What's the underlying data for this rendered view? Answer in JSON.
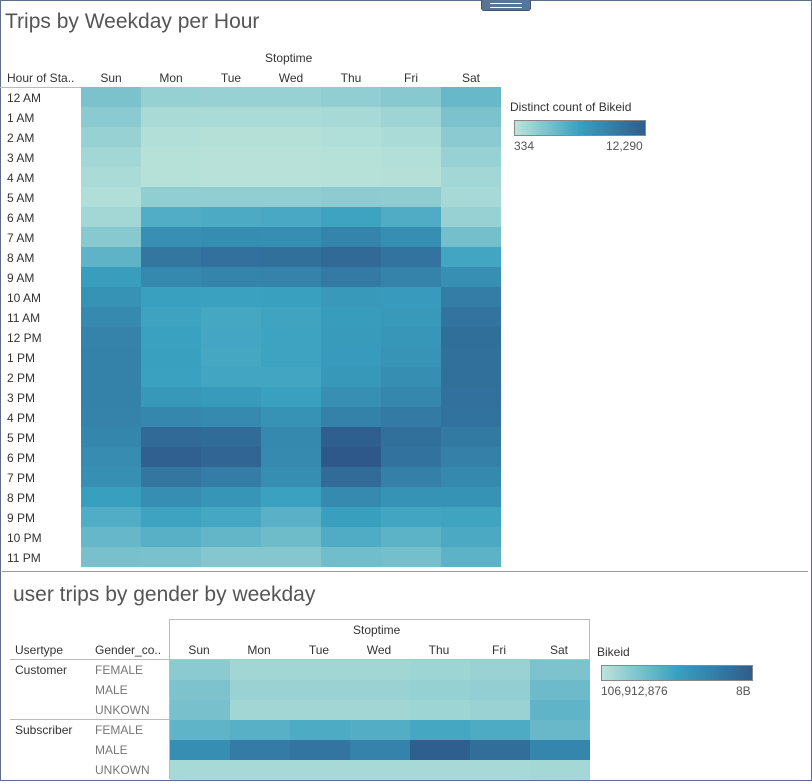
{
  "chart_data": [
    {
      "type": "heatmap",
      "title": "Trips by Weekday per Hour",
      "column_group_label": "Stoptime",
      "row_header": "Hour of Sta..",
      "columns": [
        "Sun",
        "Mon",
        "Tue",
        "Wed",
        "Thu",
        "Fri",
        "Sat"
      ],
      "rows": [
        "12 AM",
        "1 AM",
        "2 AM",
        "3 AM",
        "4 AM",
        "5 AM",
        "6 AM",
        "7 AM",
        "8 AM",
        "9 AM",
        "10 AM",
        "11 AM",
        "12 PM",
        "1 PM",
        "2 PM",
        "3 PM",
        "4 PM",
        "5 PM",
        "6 PM",
        "7 PM",
        "8 PM",
        "9 PM",
        "10 PM",
        "11 PM"
      ],
      "values": [
        [
          3300,
          2100,
          2000,
          2000,
          2300,
          2700,
          4200
        ],
        [
          2600,
          1200,
          1100,
          1100,
          1300,
          1700,
          3300
        ],
        [
          2000,
          800,
          700,
          700,
          900,
          1100,
          2600
        ],
        [
          1500,
          600,
          500,
          500,
          600,
          800,
          2000
        ],
        [
          1100,
          600,
          500,
          500,
          600,
          700,
          1500
        ],
        [
          900,
          2300,
          2300,
          2300,
          2500,
          2400,
          1300
        ],
        [
          1500,
          5200,
          5400,
          5600,
          6100,
          5300,
          2000
        ],
        [
          2700,
          7600,
          7900,
          7800,
          8600,
          7800,
          3600
        ],
        [
          4600,
          9800,
          10200,
          10300,
          10800,
          10000,
          5900
        ],
        [
          6500,
          8300,
          8600,
          8700,
          9400,
          8700,
          7600
        ],
        [
          7400,
          6300,
          6200,
          6300,
          6900,
          6800,
          9200
        ],
        [
          8100,
          6100,
          5700,
          6000,
          6600,
          6900,
          10000
        ],
        [
          8700,
          6200,
          5800,
          6100,
          6700,
          7100,
          10400
        ],
        [
          8900,
          6300,
          5700,
          6100,
          6800,
          7300,
          10300
        ],
        [
          8900,
          6200,
          5900,
          5900,
          7000,
          7700,
          10300
        ],
        [
          8800,
          7000,
          6700,
          6300,
          7600,
          8400,
          10200
        ],
        [
          8700,
          8400,
          8200,
          7400,
          8900,
          9400,
          10100
        ],
        [
          8500,
          10900,
          10700,
          8300,
          11700,
          10300,
          9500
        ],
        [
          8000,
          11600,
          11200,
          8200,
          12290,
          10100,
          9000
        ],
        [
          7600,
          9800,
          9200,
          7800,
          10600,
          9000,
          8300
        ],
        [
          6400,
          7700,
          7200,
          6200,
          8100,
          7400,
          7400
        ],
        [
          5200,
          6100,
          5700,
          4800,
          6400,
          5900,
          6000
        ],
        [
          4300,
          4900,
          4400,
          3900,
          5300,
          4700,
          5500
        ],
        [
          3500,
          3400,
          2900,
          2900,
          3800,
          3600,
          4700
        ]
      ],
      "color_legend": {
        "title": "Distinct count of Bikeid",
        "min_label": "334",
        "max_label": "12,290",
        "min": 334,
        "max": 12290
      }
    },
    {
      "type": "heatmap",
      "title": "user trips by gender by weekday",
      "column_group_label": "Stoptime",
      "row_headers": [
        "Usertype",
        "Gender_co.."
      ],
      "columns": [
        "Sun",
        "Mon",
        "Tue",
        "Wed",
        "Thu",
        "Fri",
        "Sat"
      ],
      "rows": [
        {
          "usertype": "Customer",
          "gender": "FEMALE"
        },
        {
          "usertype": "",
          "gender": "MALE"
        },
        {
          "usertype": "",
          "gender": "UNKOWN"
        },
        {
          "usertype": "Subscriber",
          "gender": "FEMALE"
        },
        {
          "usertype": "",
          "gender": "MALE"
        },
        {
          "usertype": "",
          "gender": "UNKOWN"
        }
      ],
      "values": [
        [
          0.19,
          0.1,
          0.1,
          0.1,
          0.12,
          0.13,
          0.24
        ],
        [
          0.24,
          0.13,
          0.13,
          0.13,
          0.15,
          0.16,
          0.3
        ],
        [
          0.26,
          0.1,
          0.1,
          0.1,
          0.12,
          0.13,
          0.35
        ],
        [
          0.35,
          0.38,
          0.42,
          0.4,
          0.45,
          0.42,
          0.32
        ],
        [
          0.62,
          0.75,
          0.8,
          0.7,
          0.95,
          0.85,
          0.68
        ],
        [
          0.08,
          0.08,
          0.08,
          0.08,
          0.08,
          0.08,
          0.09
        ]
      ],
      "color_legend": {
        "title": "Bikeid",
        "min_label": "106,912,876",
        "max_label": "8B"
      }
    }
  ]
}
